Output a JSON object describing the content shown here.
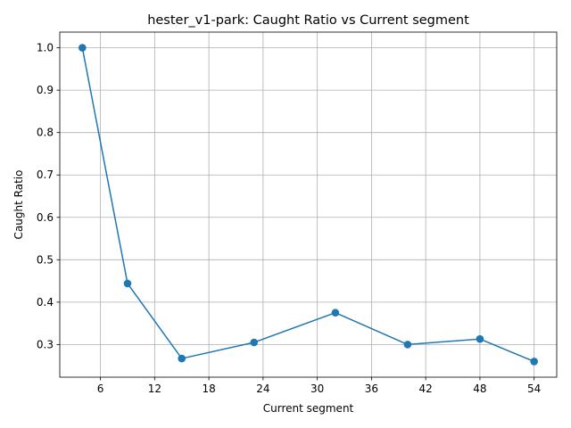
{
  "chart_data": {
    "type": "line",
    "title": "hester_v1-park: Caught Ratio vs Current segment",
    "xlabel": "Current segment",
    "ylabel": "Caught Ratio",
    "x": [
      4,
      9,
      15,
      23,
      32,
      40,
      48,
      54
    ],
    "series": [
      {
        "values": [
          1.0,
          0.444,
          0.267,
          0.305,
          0.375,
          0.3,
          0.313,
          0.26
        ],
        "color": "#1f77b4",
        "marker": "circle"
      }
    ],
    "xlim": [
      1.5,
      56.5
    ],
    "ylim": [
      0.223,
      1.037
    ],
    "xticks": [
      6,
      12,
      18,
      24,
      30,
      36,
      42,
      48,
      54
    ],
    "yticks": [
      0.3,
      0.4,
      0.5,
      0.6,
      0.7,
      0.8,
      0.9,
      1.0
    ],
    "ytick_labels": [
      "0.3",
      "0.4",
      "0.5",
      "0.6",
      "0.7",
      "0.8",
      "0.9",
      "1.0"
    ],
    "grid": true,
    "grid_color": "#b0b0b0",
    "legend": false
  }
}
